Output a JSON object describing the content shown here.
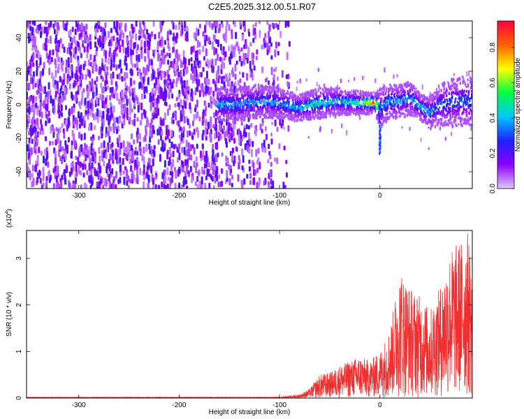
{
  "figure_title": "C2E5.2025.312.00.51.R07",
  "chart_data": [
    {
      "type": "heatmap",
      "name": "spectrogram",
      "xlabel": "Height of straight line (km)",
      "ylabel": "Frequency (Hz)",
      "xlim": [
        -352,
        92
      ],
      "ylim": [
        -50,
        50
      ],
      "xticks": [
        -300,
        -200,
        -100,
        0
      ],
      "xtick_labels": [
        "-300",
        "-200",
        "-100",
        "0"
      ],
      "yticks": [
        -40,
        -20,
        0,
        20,
        40
      ],
      "ytick_labels": [
        "-40",
        "-20",
        "0",
        "20",
        "40"
      ],
      "grid": false,
      "colorbar": {
        "label": "Normalized spectral amplitude",
        "range": [
          0,
          0.95
        ],
        "ticks": [
          0.0,
          0.2,
          0.4,
          0.6,
          0.8
        ],
        "tick_labels": [
          "0.0",
          "0.2",
          "0.4",
          "0.6",
          "0.8"
        ],
        "colormap": [
          "#e0c8ff",
          "#8b00ff",
          "#2020ff",
          "#00c8ff",
          "#00ff40",
          "#ffff00",
          "#ff6000",
          "#ff0040"
        ]
      },
      "signal_track": {
        "x": [
          -160,
          -140,
          -120,
          -100,
          -80,
          -60,
          -40,
          -20,
          -5,
          0,
          10,
          20,
          30,
          40,
          50,
          60,
          70,
          80,
          90
        ],
        "y": [
          0,
          0,
          2,
          1,
          -2,
          1,
          2,
          1,
          1,
          -2,
          2,
          2,
          4,
          -1,
          -5,
          0,
          1,
          2,
          2
        ],
        "half_width_hz": [
          10,
          10,
          10,
          9,
          8,
          9,
          8,
          7,
          6,
          12,
          10,
          10,
          10,
          8,
          10,
          12,
          14,
          15,
          15
        ],
        "peak_amplitude": [
          0.35,
          0.35,
          0.3,
          0.35,
          0.4,
          0.45,
          0.4,
          0.5,
          0.95,
          0.3,
          0.35,
          0.35,
          0.3,
          0.4,
          0.3,
          0.25,
          0.25,
          0.25,
          0.25
        ]
      },
      "dip": {
        "x": 0,
        "y_min": -30
      },
      "noise_region_x": [
        -352,
        -90
      ]
    },
    {
      "type": "line",
      "name": "snr",
      "xlabel": "Height of straight line (km)",
      "ylabel": "SNR (10 * v/v)",
      "y_multiplier_label": "(x10",
      "y_multiplier_exponent": "4",
      "y_multiplier_close": ")",
      "xlim": [
        -352,
        92
      ],
      "ylim": [
        0,
        3.6
      ],
      "xticks": [
        -300,
        -200,
        -100,
        0
      ],
      "xtick_labels": [
        "-300",
        "-200",
        "-100",
        "0"
      ],
      "yticks": [
        0,
        1,
        2,
        3
      ],
      "ytick_labels": [
        "0",
        "1",
        "2",
        "3"
      ],
      "grid": false,
      "color": "#ee3030",
      "envelope": {
        "x": [
          -352,
          -100,
          -80,
          -70,
          -60,
          -50,
          -40,
          -30,
          -20,
          -10,
          0,
          10,
          20,
          30,
          40,
          50,
          60,
          70,
          80,
          88,
          92
        ],
        "y": [
          0.02,
          0.02,
          0.08,
          0.2,
          0.5,
          0.55,
          0.7,
          0.8,
          0.9,
          0.8,
          1.0,
          1.5,
          2.8,
          2.4,
          2.2,
          1.9,
          2.4,
          3.2,
          3.4,
          3.6,
          2.8
        ]
      }
    }
  ]
}
